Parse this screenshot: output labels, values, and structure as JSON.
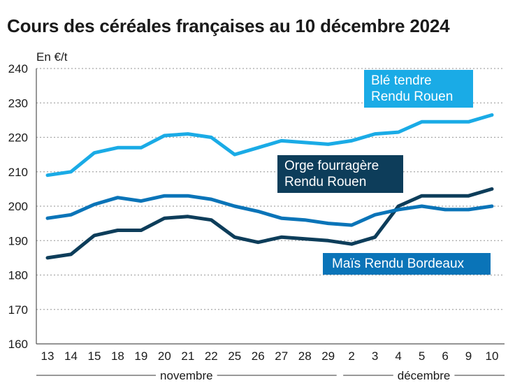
{
  "chart_data": {
    "type": "line",
    "title": "Cours des céréales françaises au 10 décembre 2024",
    "ylabel": "En €/t",
    "ylim": [
      160,
      240
    ],
    "yticks": [
      160,
      170,
      180,
      190,
      200,
      210,
      220,
      230,
      240
    ],
    "categories": [
      "13",
      "14",
      "15",
      "18",
      "19",
      "20",
      "21",
      "22",
      "25",
      "26",
      "27",
      "28",
      "29",
      "2",
      "3",
      "4",
      "5",
      "6",
      "9",
      "10"
    ],
    "month_groups": [
      {
        "label": "novembre",
        "start": 0,
        "end": 12
      },
      {
        "label": "décembre",
        "start": 13,
        "end": 19
      }
    ],
    "grid": true,
    "series": [
      {
        "name": "Blé tendre Rendu Rouen",
        "name_lines": [
          "Blé tendre",
          "Rendu Rouen"
        ],
        "color": "#1aabe6",
        "values": [
          209,
          210,
          215.5,
          217,
          217,
          220.5,
          221,
          220,
          215,
          217,
          219,
          218.5,
          218,
          219,
          221,
          221.5,
          224.5,
          224.5,
          224.5,
          226.5
        ]
      },
      {
        "name": "Orge fourragère Rendu Rouen",
        "name_lines": [
          "Orge fourragère",
          "Rendu Rouen"
        ],
        "color": "#0d3d5a",
        "values": [
          185,
          186,
          191.5,
          193,
          193,
          196.5,
          197,
          196,
          191,
          189.5,
          191,
          190.5,
          190,
          189,
          191,
          200,
          203,
          203,
          203,
          205
        ]
      },
      {
        "name": "Maïs Rendu Bordeaux",
        "name_lines": [
          "Maïs Rendu Bordeaux"
        ],
        "color": "#0a74b8",
        "values": [
          196.5,
          197.5,
          200.5,
          202.5,
          201.5,
          203,
          203,
          202,
          200,
          198.5,
          196.5,
          196,
          195,
          194.5,
          197.5,
          199,
          200,
          199,
          199,
          200
        ]
      }
    ]
  }
}
